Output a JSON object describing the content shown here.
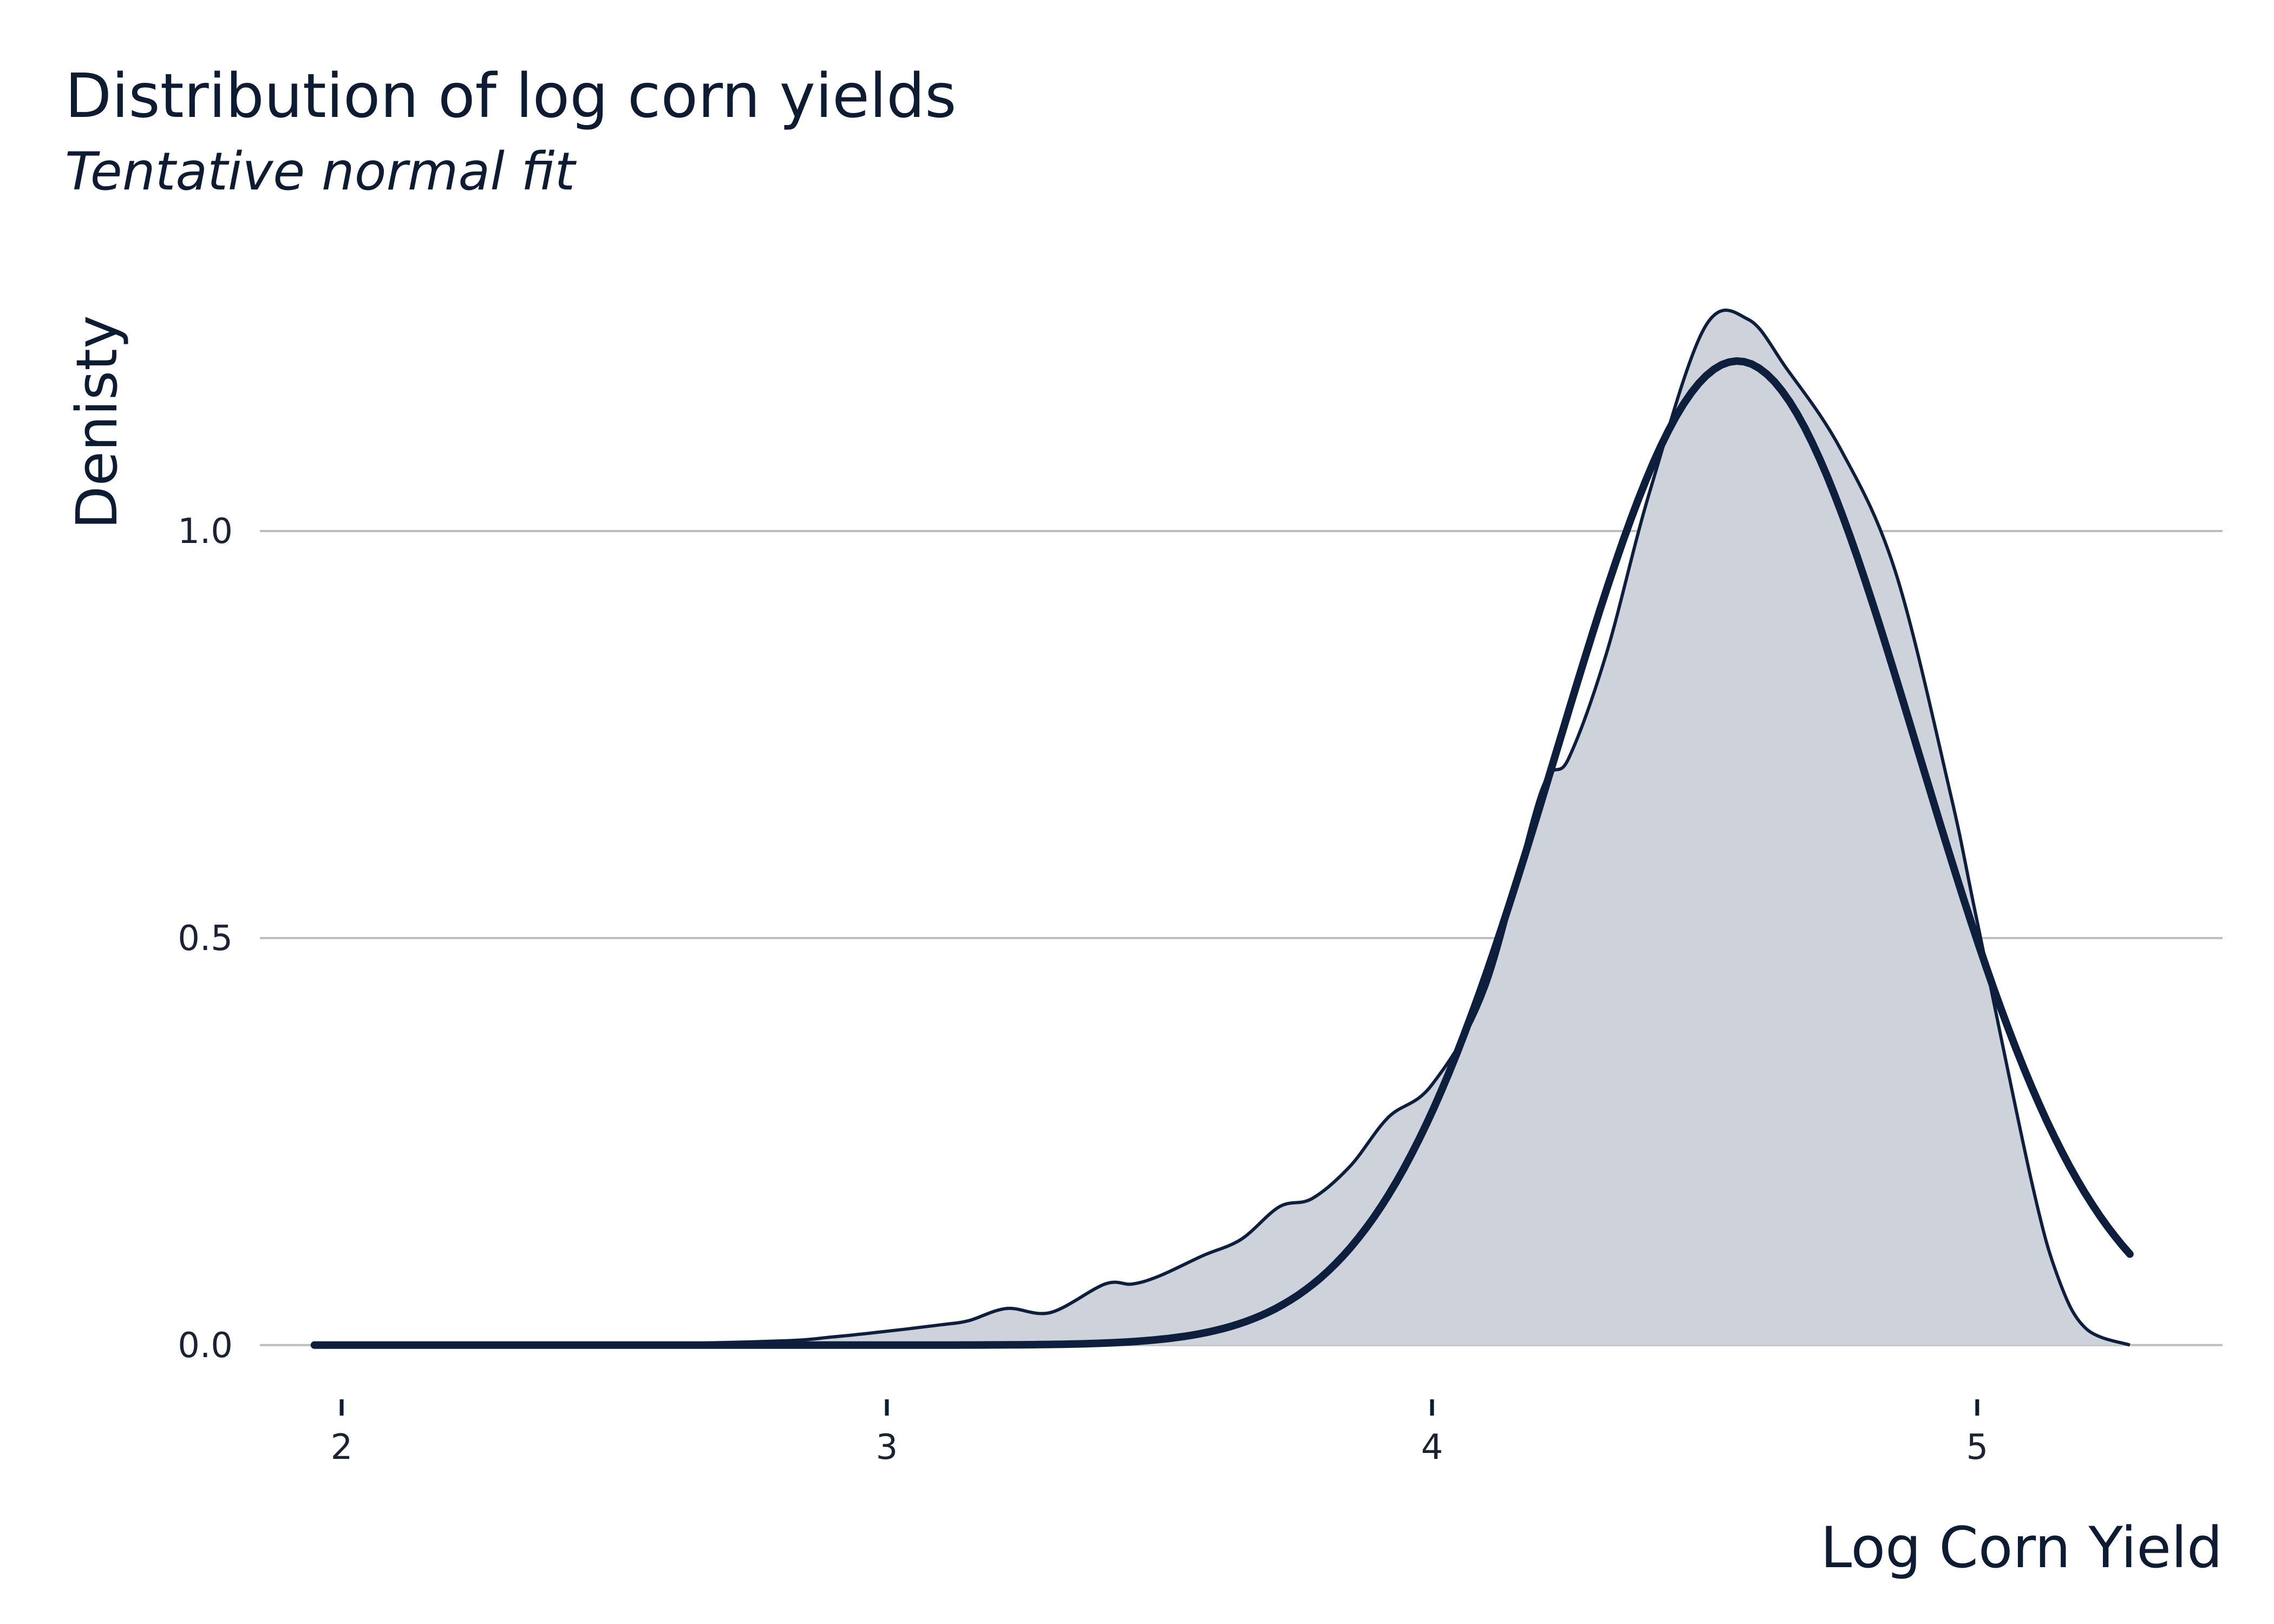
{
  "chart_data": {
    "type": "area",
    "title": "Distribution of log corn yields",
    "subtitle": "Tentative normal fit",
    "xlabel": "Log Corn Yield",
    "ylabel": "Denisty",
    "xlim": [
      1.85,
      5.45
    ],
    "ylim": [
      -0.05,
      1.28
    ],
    "x_ticks": [
      2,
      3,
      4,
      5
    ],
    "x_tick_labels": [
      "2",
      "3",
      "4",
      "5"
    ],
    "y_ticks": [
      0.0,
      0.5,
      1.0
    ],
    "y_tick_labels": [
      "0.0",
      "0.5",
      "1.0"
    ],
    "grid": "horizontal",
    "legend": "none",
    "colors": {
      "line": "#0d1f3c",
      "fill": "#ced3db",
      "grid": "#bdbdbd"
    },
    "series": [
      {
        "kind": "density-area",
        "x": [
          1.95,
          2.5,
          2.8,
          2.9,
          3.0,
          3.1,
          3.15,
          3.22,
          3.3,
          3.4,
          3.45,
          3.5,
          3.58,
          3.65,
          3.72,
          3.78,
          3.85,
          3.92,
          4.0,
          4.1,
          4.2,
          4.25,
          4.32,
          4.4,
          4.5,
          4.58,
          4.65,
          4.75,
          4.85,
          4.95,
          5.0,
          5.1,
          5.15,
          5.2,
          5.28
        ],
        "y": [
          0.0,
          0.001,
          0.005,
          0.01,
          0.017,
          0.025,
          0.03,
          0.045,
          0.04,
          0.075,
          0.075,
          0.085,
          0.11,
          0.13,
          0.17,
          0.18,
          0.22,
          0.28,
          0.32,
          0.44,
          0.68,
          0.72,
          0.85,
          1.05,
          1.25,
          1.26,
          1.2,
          1.1,
          0.95,
          0.68,
          0.52,
          0.2,
          0.08,
          0.02,
          0.0
        ]
      },
      {
        "kind": "normal-fit",
        "mean": 4.56,
        "sd": 0.33,
        "x_range": [
          1.95,
          5.28
        ]
      }
    ]
  }
}
